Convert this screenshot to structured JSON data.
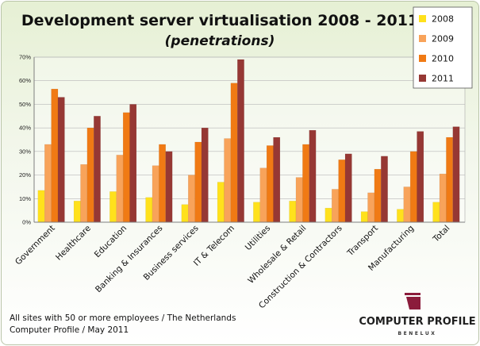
{
  "chart_data": {
    "type": "bar",
    "title": "Development server virtualisation 2008 - 2011",
    "subtitle": "(penetrations)",
    "categories": [
      "Government",
      "Healthcare",
      "Education",
      "Banking & Insurances",
      "Business services",
      "IT & Telecom",
      "Utilities",
      "Wholesale & Retail",
      "Construction & Contractors",
      "Transport",
      "Manufacturing",
      "Total"
    ],
    "series": [
      {
        "name": "2008",
        "color": "#ffe11c",
        "values": [
          13.5,
          9,
          13,
          10.5,
          7.5,
          17,
          8.5,
          9,
          6,
          4.5,
          5.5,
          8.5
        ]
      },
      {
        "name": "2009",
        "color": "#f8a35a",
        "values": [
          33,
          24.5,
          28.5,
          24,
          20,
          35.5,
          23,
          19,
          14,
          12.5,
          15,
          20.5
        ]
      },
      {
        "name": "2010",
        "color": "#f07a14",
        "values": [
          56.5,
          40,
          46.5,
          33,
          34,
          59,
          32.5,
          33,
          26.5,
          22.5,
          30,
          36
        ]
      },
      {
        "name": "2011",
        "color": "#963834",
        "values": [
          53,
          45,
          50,
          30,
          40,
          69,
          36,
          39,
          29,
          28,
          38.5,
          40.5
        ]
      }
    ],
    "yticks": [
      "0%",
      "10%",
      "20%",
      "30%",
      "40%",
      "50%",
      "60%",
      "70%"
    ],
    "ylim": [
      0,
      70
    ],
    "grid": true,
    "legend": "top-right"
  },
  "footnote": {
    "line1": "All sites with 50 or more employees / The Netherlands",
    "line2": "Computer Profile / May 2011"
  },
  "logo": {
    "name": "COMPUTER PROFILE",
    "sub": "BENELUX",
    "color": "#8b1c3b"
  }
}
